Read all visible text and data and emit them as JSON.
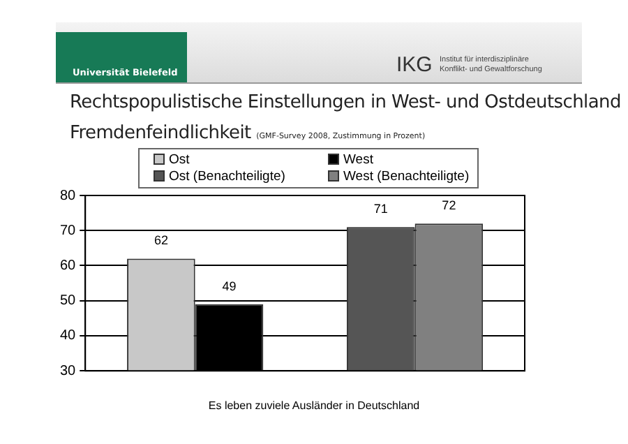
{
  "chart_data": {
    "type": "bar",
    "title": "Rechtspopulistische Einstellungen in West- und Ostdeutschland",
    "subtitle": "Fremdenfeindlichkeit",
    "xlabel": "Es leben zuviele Ausländer in Deutschland",
    "annotations": [
      "Universität Bielefeld",
      "IKG",
      "Institut für interdisziplinäre Konflikt- und Gewaltforschung",
      "(GMF-Survey 2008, Zustimmung in Prozent)"
    ],
    "categories": [
      null,
      null
    ],
    "series": [
      {
        "name": "Ost",
        "color": "#c8c8c8",
        "values": [
          62,
          null
        ]
      },
      {
        "name": "West",
        "color": "#000000",
        "values": [
          49,
          null
        ]
      },
      {
        "name": "Ost (Benachteiligte)",
        "color": "#555555",
        "values": [
          null,
          71
        ]
      },
      {
        "name": "West (Benachteiligte)",
        "color": "#808080",
        "values": [
          null,
          72
        ]
      }
    ],
    "ylim": [
      30,
      80
    ],
    "yticks": [
      30,
      40,
      50,
      60,
      70,
      80
    ],
    "grid": "y",
    "legend": "top",
    "data_labels": true
  }
}
